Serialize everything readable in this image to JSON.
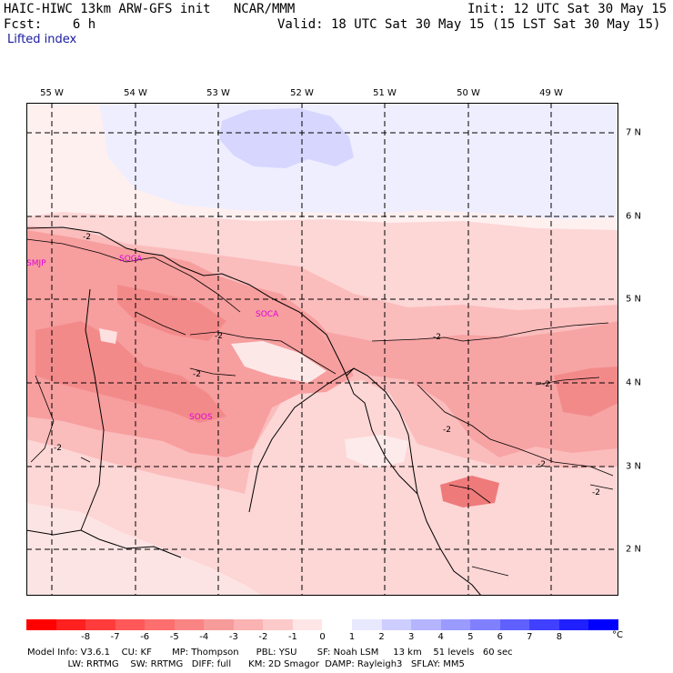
{
  "header": {
    "title": "HAIC-HIWC 13km ARW-GFS init   NCAR/MMM",
    "init": "Init: 12 UTC Sat 30 May 15",
    "fcst": "Fcst:    6 h",
    "valid": "Valid: 18 UTC Sat 30 May 15 (15 LST Sat 30 May 15)",
    "field": "Lifted index"
  },
  "map": {
    "lon_labels": [
      "55 W",
      "54 W",
      "53 W",
      "52 W",
      "51 W",
      "50 W",
      "49 W"
    ],
    "lat_labels": [
      "7 N",
      "6 N",
      "5 N",
      "4 N",
      "3 N",
      "2 N"
    ],
    "stations": [
      "SMJP",
      "SOCA",
      "SOOS",
      "SOCA"
    ],
    "contour_label": "-2"
  },
  "colorbar": {
    "unit": "°C",
    "colors": [
      "#ff0000",
      "#ff2020",
      "#ff3c3c",
      "#ff5858",
      "#fd6e6e",
      "#f98484",
      "#f79a9a",
      "#fab2b2",
      "#fccaca",
      "#fee6e6",
      "#ffffff",
      "#e8e8ff",
      "#cdcdff",
      "#b4b4ff",
      "#9a9aff",
      "#8080ff",
      "#6060ff",
      "#4040ff",
      "#2020ff",
      "#0000ff"
    ],
    "ticks": [
      "-8",
      "-7",
      "-6",
      "-5",
      "-4",
      "-3",
      "-2",
      "-1",
      "0",
      "1",
      "2",
      "3",
      "4",
      "5",
      "6",
      "7",
      "8"
    ]
  },
  "footer": {
    "line1": "Model Info: V3.6.1    CU: KF       MP: Thompson      PBL: YSU       SF: Noah LSM     13 km    51 levels   60 sec",
    "line2": "              LW: RRTMG    SW: RRTMG   DIFF: full      KM: 2D Smagor  DAMP: Rayleigh3   SFLAY: MM5"
  }
}
